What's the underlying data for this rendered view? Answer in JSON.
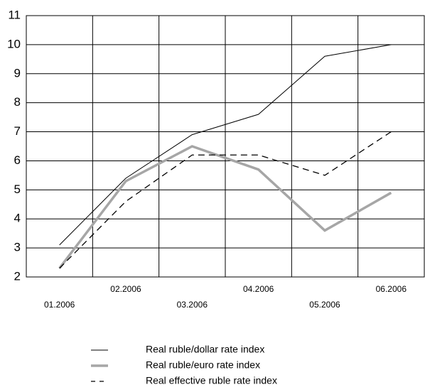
{
  "chart_data": {
    "type": "line",
    "categories": [
      "01.2006",
      "02.2006",
      "03.2006",
      "04.2006",
      "05.2006",
      "06.2006"
    ],
    "series": [
      {
        "name": "Real ruble/dollar rate index",
        "color": "#000000",
        "line_width": 1,
        "dashed": false,
        "values": [
          3.1,
          5.4,
          6.9,
          7.6,
          9.6,
          10.0
        ]
      },
      {
        "name": "Real ruble/euro rate index",
        "color": "#a6a6a6",
        "line_width": 3.5,
        "dashed": false,
        "values": [
          2.3,
          5.3,
          6.5,
          5.7,
          3.6,
          4.9
        ]
      },
      {
        "name": "Real effective ruble rate index",
        "color": "#000000",
        "line_width": 1.3,
        "dashed": true,
        "values": [
          2.3,
          4.6,
          6.2,
          6.2,
          5.5,
          7.0
        ]
      }
    ],
    "ylim": [
      2,
      11
    ],
    "yticks": [
      2,
      3,
      4,
      5,
      6,
      7,
      8,
      9,
      10,
      11
    ],
    "grid": true
  }
}
